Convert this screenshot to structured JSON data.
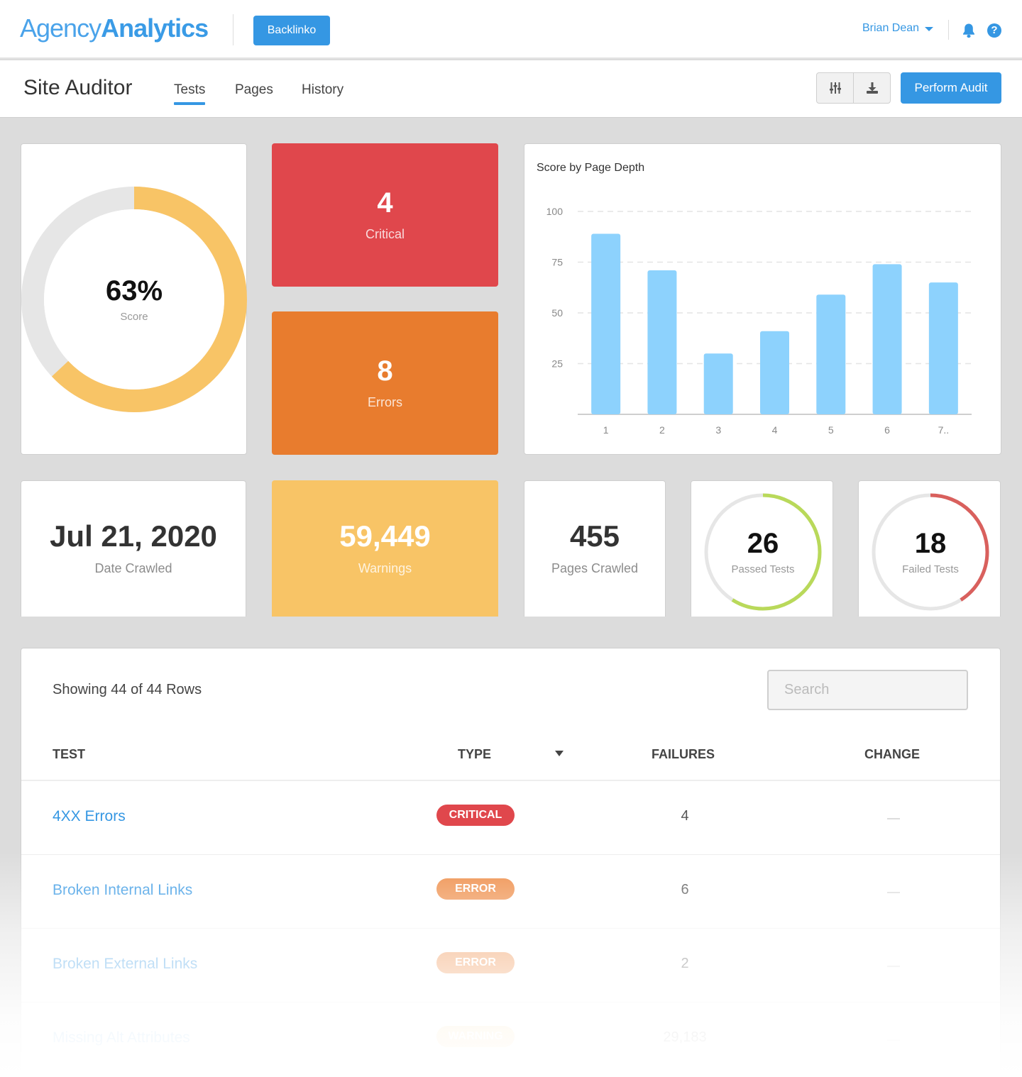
{
  "topbar": {
    "logo_light": "Agency",
    "logo_bold": "Analytics",
    "client_button": "Backlinko",
    "user_name": "Brian Dean",
    "icons": [
      "bell-icon",
      "help-icon"
    ]
  },
  "subbar": {
    "title": "Site Auditor",
    "tabs": [
      {
        "label": "Tests",
        "active": true
      },
      {
        "label": "Pages",
        "active": false
      },
      {
        "label": "History",
        "active": false
      }
    ],
    "icon_buttons": [
      "settings-sliders-icon",
      "download-icon"
    ],
    "perform_button": "Perform Audit"
  },
  "colors": {
    "accent": "#3597e3",
    "critical": "#e0474c",
    "error": "#e87c2e",
    "warning": "#f8c466",
    "passed": "#b9d95a",
    "failed": "#d9605d",
    "score_ring": "#f8c466",
    "bar": "#8dd2fd"
  },
  "score": {
    "value": "63%",
    "label": "Score",
    "percent": 63
  },
  "critical": {
    "value": "4",
    "label": "Critical"
  },
  "errors": {
    "value": "8",
    "label": "Errors"
  },
  "date_crawled": {
    "value": "Jul 21, 2020",
    "label": "Date Crawled"
  },
  "warnings": {
    "value": "59,449",
    "label": "Warnings"
  },
  "pages_crawled": {
    "value": "455",
    "label": "Pages Crawled"
  },
  "passed_tests": {
    "value": "26",
    "label": "Passed Tests",
    "fraction": 0.59
  },
  "failed_tests": {
    "value": "18",
    "label": "Failed Tests",
    "fraction": 0.41
  },
  "chart_data": {
    "type": "bar",
    "title": "Score by Page Depth",
    "categories": [
      "1",
      "2",
      "3",
      "4",
      "5",
      "6",
      "7.."
    ],
    "values": [
      89,
      71,
      30,
      41,
      59,
      74,
      65
    ],
    "xlabel": "",
    "ylabel": "",
    "ylim": [
      0,
      100
    ],
    "yticks": [
      25,
      50,
      75,
      100
    ],
    "grid": true,
    "legend": null
  },
  "table": {
    "rows_label": "Showing 44 of 44 Rows",
    "search_placeholder": "Search",
    "columns": [
      "TEST",
      "TYPE",
      "FAILURES",
      "CHANGE"
    ],
    "rows": [
      {
        "test": "4XX Errors",
        "type": "CRITICAL",
        "failures": "4",
        "change": "—"
      },
      {
        "test": "Broken Internal Links",
        "type": "ERROR",
        "failures": "6",
        "change": "—"
      },
      {
        "test": "Broken External Links",
        "type": "ERROR",
        "failures": "2",
        "change": "—"
      },
      {
        "test": "Missing Alt Attributes",
        "type": "WARNING",
        "failures": "29,183",
        "change": "—"
      }
    ]
  }
}
